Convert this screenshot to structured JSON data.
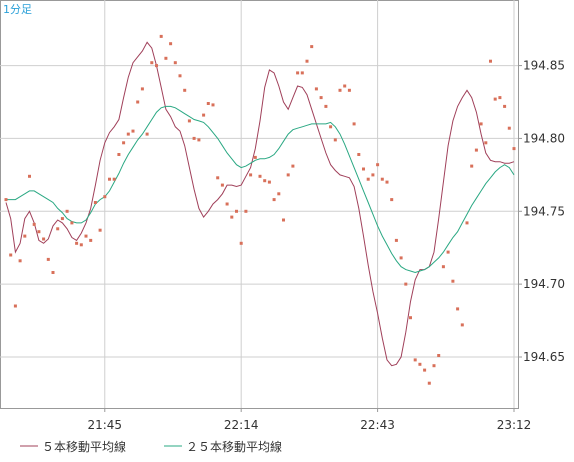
{
  "chart_data": {
    "type": "line",
    "interval_label": "1分足",
    "title": "",
    "xlabel": "",
    "ylabel": "",
    "ylim": [
      194.615,
      194.895
    ],
    "y_ticks": [
      194.65,
      194.7,
      194.75,
      194.8,
      194.85
    ],
    "x_tick_labels": [
      "21:45",
      "22:14",
      "22:43",
      "23:12"
    ],
    "x_tick_index": [
      21,
      50,
      79,
      108
    ],
    "x_count": 109,
    "grid": true,
    "legend_position": "bottom",
    "colors": {
      "ma5": "#a0405a",
      "ma25": "#2aa883",
      "price": "#d8705a",
      "grid": "#cfcfcf",
      "frame": "#999999"
    },
    "series": [
      {
        "name": "５本移動平均線",
        "values": [
          194.756,
          194.745,
          194.722,
          194.728,
          194.745,
          194.75,
          194.742,
          194.73,
          194.728,
          194.731,
          194.74,
          194.744,
          194.742,
          194.738,
          194.732,
          194.73,
          194.735,
          194.742,
          194.752,
          194.768,
          194.785,
          194.797,
          194.804,
          194.808,
          194.813,
          194.828,
          194.842,
          194.852,
          194.856,
          194.86,
          194.866,
          194.862,
          194.85,
          194.835,
          194.82,
          194.815,
          194.808,
          194.805,
          194.795,
          194.78,
          194.765,
          194.752,
          194.746,
          194.75,
          194.755,
          194.758,
          194.762,
          194.768,
          194.768,
          194.767,
          194.768,
          194.774,
          194.78,
          194.793,
          194.812,
          194.835,
          194.847,
          194.845,
          194.836,
          194.825,
          194.82,
          194.828,
          194.836,
          194.835,
          194.83,
          194.82,
          194.81,
          194.8,
          194.79,
          194.782,
          194.778,
          194.775,
          194.774,
          194.773,
          194.767,
          194.752,
          194.733,
          194.713,
          194.695,
          194.68,
          194.663,
          194.648,
          194.644,
          194.645,
          194.65,
          194.667,
          194.688,
          194.703,
          194.71,
          194.71,
          194.712,
          194.722,
          194.745,
          194.77,
          194.795,
          194.812,
          194.822,
          194.828,
          194.833,
          194.828,
          194.818,
          194.803,
          194.79,
          194.785,
          194.784,
          194.784,
          194.783,
          194.783,
          194.784
        ]
      },
      {
        "name": "２５本移動平均線",
        "values": [
          194.758,
          194.758,
          194.758,
          194.76,
          194.762,
          194.764,
          194.764,
          194.762,
          194.76,
          194.758,
          194.756,
          194.752,
          194.749,
          194.745,
          194.743,
          194.742,
          194.742,
          194.744,
          194.749,
          194.755,
          194.758,
          194.76,
          194.764,
          194.77,
          194.776,
          194.783,
          194.789,
          194.794,
          194.799,
          194.803,
          194.808,
          194.813,
          194.818,
          194.821,
          194.822,
          194.822,
          194.821,
          194.819,
          194.817,
          194.815,
          194.813,
          194.812,
          194.811,
          194.808,
          194.804,
          194.8,
          194.795,
          194.79,
          194.786,
          194.782,
          194.78,
          194.781,
          194.783,
          194.785,
          194.786,
          194.786,
          194.787,
          194.789,
          194.793,
          194.798,
          194.803,
          194.806,
          194.807,
          194.808,
          194.809,
          194.81,
          194.81,
          194.81,
          194.81,
          194.811,
          194.808,
          194.803,
          194.796,
          194.788,
          194.78,
          194.772,
          194.764,
          194.756,
          194.748,
          194.74,
          194.733,
          194.727,
          194.721,
          194.716,
          194.712,
          194.71,
          194.709,
          194.708,
          194.709,
          194.71,
          194.712,
          194.715,
          194.718,
          194.722,
          194.727,
          194.732,
          194.736,
          194.742,
          194.748,
          194.754,
          194.759,
          194.764,
          194.769,
          194.773,
          194.777,
          194.78,
          194.782,
          194.78,
          194.775
        ]
      }
    ],
    "points": [
      [
        0,
        194.758
      ],
      [
        1,
        194.72
      ],
      [
        2,
        194.685
      ],
      [
        3,
        194.716
      ],
      [
        4,
        194.733
      ],
      [
        5,
        194.774
      ],
      [
        6,
        194.741
      ],
      [
        7,
        194.736
      ],
      [
        8,
        194.731
      ],
      [
        9,
        194.717
      ],
      [
        10,
        194.708
      ],
      [
        11,
        194.738
      ],
      [
        12,
        194.745
      ],
      [
        13,
        194.75
      ],
      [
        14,
        194.742
      ],
      [
        15,
        194.728
      ],
      [
        16,
        194.727
      ],
      [
        17,
        194.733
      ],
      [
        18,
        194.73
      ],
      [
        19,
        194.756
      ],
      [
        20,
        194.737
      ],
      [
        21,
        194.76
      ],
      [
        22,
        194.772
      ],
      [
        23,
        194.772
      ],
      [
        24,
        194.789
      ],
      [
        25,
        194.797
      ],
      [
        26,
        194.803
      ],
      [
        27,
        194.805
      ],
      [
        28,
        194.825
      ],
      [
        29,
        194.834
      ],
      [
        30,
        194.803
      ],
      [
        31,
        194.852
      ],
      [
        32,
        194.85
      ],
      [
        33,
        194.87
      ],
      [
        34,
        194.855
      ],
      [
        35,
        194.865
      ],
      [
        36,
        194.852
      ],
      [
        37,
        194.843
      ],
      [
        38,
        194.833
      ],
      [
        39,
        194.812
      ],
      [
        40,
        194.8
      ],
      [
        41,
        194.799
      ],
      [
        42,
        194.816
      ],
      [
        43,
        194.824
      ],
      [
        44,
        194.823
      ],
      [
        45,
        194.773
      ],
      [
        46,
        194.768
      ],
      [
        47,
        194.755
      ],
      [
        48,
        194.746
      ],
      [
        49,
        194.75
      ],
      [
        50,
        194.728
      ],
      [
        51,
        194.75
      ],
      [
        52,
        194.775
      ],
      [
        53,
        194.787
      ],
      [
        54,
        194.774
      ],
      [
        55,
        194.771
      ],
      [
        56,
        194.77
      ],
      [
        57,
        194.758
      ],
      [
        58,
        194.762
      ],
      [
        59,
        194.744
      ],
      [
        60,
        194.775
      ],
      [
        61,
        194.781
      ],
      [
        62,
        194.845
      ],
      [
        63,
        194.845
      ],
      [
        64,
        194.853
      ],
      [
        65,
        194.863
      ],
      [
        66,
        194.834
      ],
      [
        67,
        194.828
      ],
      [
        68,
        194.822
      ],
      [
        69,
        194.808
      ],
      [
        70,
        194.799
      ],
      [
        71,
        194.833
      ],
      [
        72,
        194.836
      ],
      [
        73,
        194.833
      ],
      [
        74,
        194.81
      ],
      [
        75,
        194.789
      ],
      [
        76,
        194.779
      ],
      [
        77,
        194.772
      ],
      [
        78,
        194.775
      ],
      [
        79,
        194.782
      ],
      [
        80,
        194.772
      ],
      [
        81,
        194.77
      ],
      [
        82,
        194.758
      ],
      [
        83,
        194.73
      ],
      [
        84,
        194.718
      ],
      [
        85,
        194.7
      ],
      [
        86,
        194.677
      ],
      [
        87,
        194.648
      ],
      [
        88,
        194.645
      ],
      [
        89,
        194.641
      ],
      [
        90,
        194.632
      ],
      [
        91,
        194.644
      ],
      [
        92,
        194.651
      ],
      [
        93,
        194.712
      ],
      [
        94,
        194.722
      ],
      [
        95,
        194.702
      ],
      [
        96,
        194.683
      ],
      [
        97,
        194.672
      ],
      [
        98,
        194.742
      ],
      [
        99,
        194.781
      ],
      [
        100,
        194.792
      ],
      [
        101,
        194.81
      ],
      [
        102,
        194.797
      ],
      [
        103,
        194.853
      ],
      [
        104,
        194.827
      ],
      [
        105,
        194.828
      ],
      [
        106,
        194.822
      ],
      [
        107,
        194.807
      ],
      [
        108,
        194.793
      ]
    ]
  }
}
